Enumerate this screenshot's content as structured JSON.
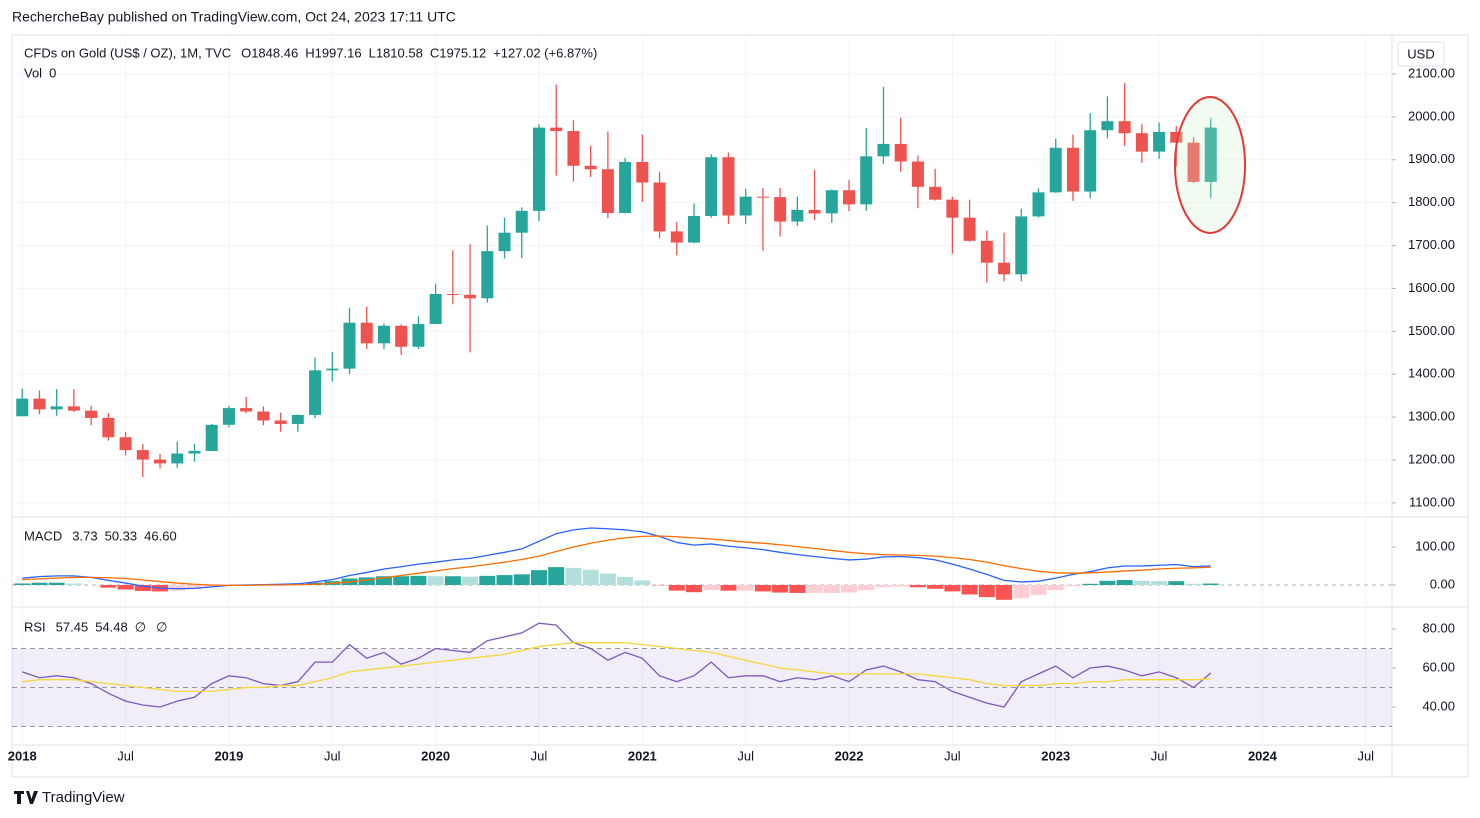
{
  "header": {
    "published": "RechercheBay published on TradingView.com, Oct 24, 2023 17:11 UTC"
  },
  "footer": {
    "brand": "TradingView"
  },
  "chart_data": [
    {
      "type": "candlestick",
      "title": "CFDs on Gold (US$ / OZ), 1M, TVC",
      "ohlc_labels": [
        "O1848.46",
        "H1997.16",
        "L1810.58",
        "C1975.12",
        "+127.02 (+6.87%)"
      ],
      "vol_label": "Vol",
      "vol_value": "0",
      "currency": "USD",
      "up_color": "#26a69a",
      "down_color": "#ef5350",
      "x": [
        "2018-01",
        "2018-02",
        "2018-03",
        "2018-04",
        "2018-05",
        "2018-06",
        "2018-07",
        "2018-08",
        "2018-09",
        "2018-10",
        "2018-11",
        "2018-12",
        "2019-01",
        "2019-02",
        "2019-03",
        "2019-04",
        "2019-05",
        "2019-06",
        "2019-07",
        "2019-08",
        "2019-09",
        "2019-10",
        "2019-11",
        "2019-12",
        "2020-01",
        "2020-02",
        "2020-03",
        "2020-04",
        "2020-05",
        "2020-06",
        "2020-07",
        "2020-08",
        "2020-09",
        "2020-10",
        "2020-11",
        "2020-12",
        "2021-01",
        "2021-02",
        "2021-03",
        "2021-04",
        "2021-05",
        "2021-06",
        "2021-07",
        "2021-08",
        "2021-09",
        "2021-10",
        "2021-11",
        "2021-12",
        "2022-01",
        "2022-02",
        "2022-03",
        "2022-04",
        "2022-05",
        "2022-06",
        "2022-07",
        "2022-08",
        "2022-09",
        "2022-10",
        "2022-11",
        "2022-12",
        "2023-01",
        "2023-02",
        "2023-03",
        "2023-04",
        "2023-05",
        "2023-06",
        "2023-07",
        "2023-08",
        "2023-09",
        "2023-10"
      ],
      "open": [
        1302,
        1343,
        1318,
        1325,
        1315,
        1298,
        1253,
        1223,
        1201,
        1192,
        1215,
        1221,
        1282,
        1321,
        1313,
        1292,
        1284,
        1305,
        1409,
        1413,
        1520,
        1472,
        1513,
        1464,
        1517,
        1587,
        1585,
        1577,
        1687,
        1730,
        1781,
        1975,
        1967,
        1886,
        1878,
        1776,
        1895,
        1847,
        1733,
        1707,
        1769,
        1906,
        1770,
        1814,
        1813,
        1756,
        1783,
        1775,
        1829,
        1796,
        1908,
        1937,
        1896,
        1837,
        1807,
        1765,
        1711,
        1660,
        1633,
        1768,
        1824,
        1928,
        1826,
        1969,
        1990,
        1962,
        1919,
        1965,
        1940,
        1848.46
      ],
      "high": [
        1366,
        1362,
        1365,
        1365,
        1326,
        1309,
        1265,
        1237,
        1214,
        1243,
        1237,
        1284,
        1326,
        1347,
        1325,
        1310,
        1306,
        1439,
        1452,
        1555,
        1557,
        1518,
        1516,
        1535,
        1611,
        1689,
        1703,
        1747,
        1765,
        1789,
        1983,
        2075,
        1992,
        1933,
        1966,
        1905,
        1959,
        1872,
        1755,
        1798,
        1913,
        1917,
        1832,
        1834,
        1834,
        1814,
        1877,
        1831,
        1853,
        1974,
        2070,
        1998,
        1910,
        1879,
        1814,
        1807,
        1735,
        1730,
        1786,
        1833,
        1949,
        1959,
        2009,
        2048,
        2079,
        1983,
        1987,
        1979,
        1953,
        1997.16
      ],
      "low": [
        1302,
        1307,
        1303,
        1312,
        1281,
        1245,
        1211,
        1160,
        1180,
        1182,
        1196,
        1221,
        1276,
        1309,
        1281,
        1266,
        1266,
        1298,
        1383,
        1400,
        1459,
        1459,
        1445,
        1459,
        1517,
        1563,
        1451,
        1567,
        1670,
        1671,
        1757,
        1863,
        1849,
        1860,
        1764,
        1775,
        1802,
        1717,
        1677,
        1705,
        1765,
        1750,
        1751,
        1688,
        1721,
        1746,
        1759,
        1753,
        1780,
        1781,
        1890,
        1872,
        1787,
        1805,
        1681,
        1709,
        1614,
        1617,
        1617,
        1765,
        1823,
        1804,
        1810,
        1950,
        1932,
        1893,
        1902,
        1884,
        1846,
        1810.58
      ],
      "close": [
        1343,
        1318,
        1325,
        1315,
        1298,
        1253,
        1223,
        1201,
        1192,
        1215,
        1221,
        1282,
        1321,
        1313,
        1292,
        1284,
        1305,
        1409,
        1413,
        1520,
        1472,
        1513,
        1464,
        1517,
        1587,
        1585,
        1577,
        1687,
        1730,
        1781,
        1975,
        1967,
        1886,
        1878,
        1776,
        1895,
        1847,
        1733,
        1707,
        1769,
        1906,
        1770,
        1814,
        1813,
        1756,
        1783,
        1775,
        1829,
        1796,
        1908,
        1937,
        1896,
        1837,
        1807,
        1765,
        1711,
        1660,
        1633,
        1768,
        1824,
        1928,
        1826,
        1969,
        1990,
        1962,
        1919,
        1965,
        1940,
        1848.46,
        1975.12
      ],
      "xlim": [
        "2017-12",
        "2024-08"
      ],
      "xticks": [
        {
          "value": "2018-01",
          "label": "2018"
        },
        {
          "value": "2018-07",
          "label": "Jul"
        },
        {
          "value": "2019-01",
          "label": "2019"
        },
        {
          "value": "2019-07",
          "label": "Jul"
        },
        {
          "value": "2020-01",
          "label": "2020"
        },
        {
          "value": "2020-07",
          "label": "Jul"
        },
        {
          "value": "2021-01",
          "label": "2021"
        },
        {
          "value": "2021-07",
          "label": "Jul"
        },
        {
          "value": "2022-01",
          "label": "2022"
        },
        {
          "value": "2022-07",
          "label": "Jul"
        },
        {
          "value": "2023-01",
          "label": "2023"
        },
        {
          "value": "2023-07",
          "label": "Jul"
        },
        {
          "value": "2024-01",
          "label": "2024"
        },
        {
          "value": "2024-07",
          "label": "Jul"
        }
      ],
      "ylim": [
        1067,
        2191
      ],
      "yticks": [
        {
          "value": 1100,
          "label": "1100.00"
        },
        {
          "value": 1200,
          "label": "1200.00"
        },
        {
          "value": 1300,
          "label": "1300.00"
        },
        {
          "value": 1400,
          "label": "1400.00"
        },
        {
          "value": 1500,
          "label": "1500.00"
        },
        {
          "value": 1600,
          "label": "1600.00"
        },
        {
          "value": 1700,
          "label": "1700.00"
        },
        {
          "value": 1800,
          "label": "1800.00"
        },
        {
          "value": 1900,
          "label": "1900.00"
        },
        {
          "value": 2000,
          "label": "2000.00"
        },
        {
          "value": 2100,
          "label": "2100.00"
        }
      ],
      "grid": true
    },
    {
      "type": "macd",
      "title": "MACD",
      "ylim": [
        -58,
        179
      ],
      "yticks": [
        {
          "value": 0,
          "label": "0.00"
        },
        {
          "value": 100,
          "label": "100.00"
        }
      ],
      "series": [
        {
          "kind": "histogram",
          "color": "#26a69a",
          "last_label": "3.73",
          "values": [
            4,
            6,
            6,
            4,
            0,
            -7,
            -12,
            -16,
            -17,
            -15,
            -11,
            -5,
            0,
            1,
            1,
            2,
            2,
            6,
            10,
            17,
            20,
            23,
            23,
            24,
            23,
            23,
            22,
            24,
            26,
            28,
            39,
            47,
            45,
            40,
            30,
            21,
            12,
            -1,
            -15,
            -19,
            -13,
            -15,
            -15,
            -17,
            -20,
            -21,
            -21,
            -21,
            -20,
            -14,
            -6,
            -4,
            -6,
            -10,
            -17,
            -25,
            -32,
            -39,
            -35,
            -26,
            -14,
            -3,
            3,
            11,
            13,
            11,
            10,
            10,
            3,
            3.73
          ]
        },
        {
          "kind": "line",
          "color": "#2962ff",
          "last_label": "50.33",
          "values": [
            18,
            22,
            24,
            24,
            20,
            12,
            5,
            -3,
            -8,
            -10,
            -9,
            -5,
            -1,
            0,
            1,
            2,
            3,
            8,
            14,
            25,
            33,
            42,
            48,
            55,
            60,
            66,
            70,
            78,
            86,
            95,
            115,
            135,
            145,
            150,
            148,
            145,
            140,
            128,
            112,
            105,
            108,
            102,
            98,
            93,
            86,
            80,
            75,
            70,
            66,
            68,
            74,
            75,
            72,
            66,
            55,
            42,
            28,
            12,
            8,
            10,
            18,
            28,
            35,
            45,
            50,
            50,
            52,
            54,
            48,
            50.33
          ]
        },
        {
          "kind": "line",
          "color": "#ff6d00",
          "last_label": "46.60",
          "values": [
            14,
            16,
            18,
            20,
            20,
            19,
            17,
            13,
            9,
            5,
            2,
            0,
            -1,
            -1,
            0,
            0,
            1,
            2,
            4,
            8,
            13,
            19,
            25,
            31,
            37,
            43,
            48,
            54,
            60,
            67,
            76,
            88,
            100,
            110,
            118,
            124,
            128,
            129,
            127,
            124,
            121,
            117,
            113,
            110,
            106,
            101,
            96,
            91,
            86,
            82,
            80,
            79,
            78,
            76,
            72,
            67,
            60,
            51,
            43,
            36,
            32,
            31,
            32,
            34,
            37,
            39,
            42,
            44,
            45,
            46.6
          ]
        }
      ]
    },
    {
      "type": "rsi",
      "title": "RSI",
      "extra_labels": [
        "∅",
        "∅"
      ],
      "ylim": [
        20.5,
        91.3
      ],
      "yticks": [
        {
          "value": 40,
          "label": "40.00"
        },
        {
          "value": 60,
          "label": "60.00"
        },
        {
          "value": 80,
          "label": "80.00"
        }
      ],
      "bands": [
        70,
        50,
        30
      ],
      "series": [
        {
          "color": "#7e57c2",
          "last_label": "57.45",
          "values": [
            58,
            55,
            56,
            55,
            52,
            47,
            43,
            41,
            40,
            43,
            45,
            52,
            56,
            55,
            52,
            51,
            53,
            63,
            63,
            72,
            65,
            68,
            62,
            65,
            70,
            69,
            68,
            74,
            76,
            78,
            83,
            82,
            73,
            70,
            64,
            68,
            65,
            56,
            53,
            56,
            63,
            55,
            56,
            56,
            53,
            55,
            54,
            56,
            53,
            59,
            61,
            58,
            54,
            53,
            48,
            45,
            42,
            40,
            53,
            57,
            61,
            55,
            60,
            61,
            59,
            56,
            58,
            55,
            50,
            57.45
          ]
        },
        {
          "color": "#f5d73a",
          "last_label": "54.48",
          "values": [
            53,
            54,
            54,
            54,
            53,
            52,
            51,
            50,
            49,
            48,
            48,
            48,
            49,
            50,
            50,
            51,
            51,
            53,
            55,
            58,
            59,
            60,
            61,
            62,
            63,
            64,
            65,
            66,
            67,
            69,
            71,
            72,
            73,
            73,
            73,
            73,
            72,
            71,
            70,
            69,
            68,
            66,
            64,
            62,
            60,
            59,
            58,
            57,
            57,
            57,
            57,
            57,
            57,
            56,
            55,
            54,
            52,
            51,
            51,
            51,
            52,
            52,
            53,
            53,
            54,
            54,
            54,
            54,
            54,
            54.48
          ]
        }
      ]
    }
  ]
}
